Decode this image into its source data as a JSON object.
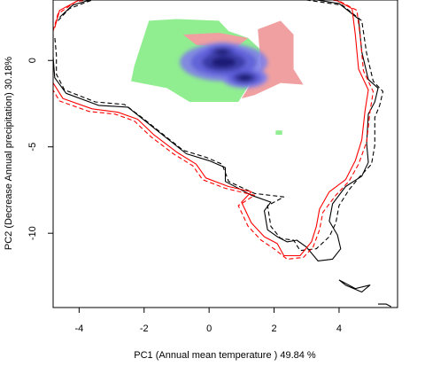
{
  "chart_data": {
    "type": "scatter",
    "title": "",
    "xlabel": "PC1 (Annual mean temperature ) 49.84 %",
    "ylabel": "PC2 (Decrease Annual precipitation) 30.18%",
    "xlim": [
      -4.8,
      5.8
    ],
    "ylim": [
      -14.3,
      3.5
    ],
    "x_ticks": [
      -4,
      -2,
      0,
      2,
      4
    ],
    "y_ticks": [
      0,
      -5,
      -10
    ],
    "grid": false,
    "legend": "none",
    "colors": {
      "overlap_density": "#1a1a6e",
      "niche_a_only": "#90ee90",
      "niche_b_only": "#f0a0a0",
      "envelope_a": "#000000",
      "envelope_b": "#ff0000"
    },
    "regions": [
      {
        "name": "",
        "color": "#90ee90",
        "polygon": [
          [
            -1.85,
            2.3
          ],
          [
            -1.0,
            2.4
          ],
          [
            0.3,
            2.3
          ],
          [
            0.6,
            1.7
          ],
          [
            1.2,
            1.3
          ],
          [
            1.6,
            0.6
          ],
          [
            1.2,
            -1.5
          ],
          [
            0.9,
            -2.4
          ],
          [
            -0.6,
            -2.4
          ],
          [
            -1.3,
            -1.6
          ],
          [
            -2.4,
            -1.2
          ],
          [
            -2.3,
            -0.3
          ]
        ]
      },
      {
        "name": "",
        "color": "#f0a0a0",
        "polygon": [
          [
            1.5,
            1.8
          ],
          [
            2.2,
            2.3
          ],
          [
            2.6,
            1.5
          ],
          [
            2.6,
            -0.5
          ],
          [
            2.9,
            -1.4
          ],
          [
            2.2,
            -1.3
          ],
          [
            1.4,
            -2.0
          ],
          [
            1.0,
            -2.2
          ],
          [
            1.6,
            -0.4
          ]
        ]
      },
      {
        "name": "",
        "color": "#f0a0a0",
        "polygon": [
          [
            -0.8,
            1.5
          ],
          [
            0.3,
            1.6
          ],
          [
            1.2,
            1.3
          ],
          [
            0.8,
            0.7
          ],
          [
            -0.4,
            0.9
          ]
        ]
      },
      {
        "name": "",
        "color": "#90ee90",
        "polygon": [
          [
            2.05,
            -4.05
          ],
          [
            2.25,
            -4.05
          ],
          [
            2.25,
            -4.3
          ],
          [
            2.05,
            -4.3
          ]
        ]
      }
    ],
    "density": [
      {
        "x": 0.45,
        "y": -0.1,
        "sx": 1.35,
        "sy": 1.1,
        "weight": 0.55
      },
      {
        "x": 1.1,
        "y": -1.0,
        "sx": 0.7,
        "sy": 0.6,
        "weight": 0.95
      },
      {
        "x": 0.4,
        "y": 0.5,
        "sx": 0.7,
        "sy": 0.55,
        "weight": 0.5
      },
      {
        "x": 0.2,
        "y": -0.3,
        "sx": 0.5,
        "sy": 0.4,
        "weight": 0.45
      }
    ],
    "series": [
      {
        "color": "#000000",
        "style": "solid",
        "points": [
          [
            -4.6,
            2.5
          ],
          [
            -4.2,
            3.2
          ],
          [
            -3.5,
            3.6
          ],
          [
            -1.5,
            3.6
          ],
          [
            1.5,
            3.6
          ],
          [
            3.0,
            3.6
          ],
          [
            4.0,
            3.3
          ],
          [
            4.6,
            2.4
          ],
          [
            4.7,
            0.5
          ],
          [
            4.9,
            -1.1
          ],
          [
            5.2,
            -1.6
          ],
          [
            5.1,
            -2.4
          ],
          [
            4.9,
            -3.1
          ],
          [
            4.85,
            -4.8
          ],
          [
            4.9,
            -5.9
          ],
          [
            4.7,
            -6.7
          ],
          [
            4.2,
            -7.3
          ],
          [
            3.8,
            -8.3
          ],
          [
            3.7,
            -9.3
          ],
          [
            3.95,
            -10.1
          ],
          [
            4.05,
            -10.9
          ],
          [
            3.8,
            -11.5
          ],
          [
            3.35,
            -11.6
          ],
          [
            3.0,
            -10.8
          ],
          [
            2.7,
            -10.4
          ],
          [
            2.4,
            -10.5
          ],
          [
            2.1,
            -10.2
          ],
          [
            1.8,
            -9.8
          ],
          [
            1.7,
            -8.7
          ],
          [
            1.9,
            -8.2
          ],
          [
            1.3,
            -7.8
          ],
          [
            0.5,
            -7.0
          ],
          [
            0.5,
            -6.2
          ],
          [
            0.0,
            -5.8
          ],
          [
            -0.7,
            -5.4
          ],
          [
            -1.3,
            -4.5
          ],
          [
            -1.9,
            -3.6
          ],
          [
            -2.5,
            -2.7
          ],
          [
            -3.4,
            -2.6
          ],
          [
            -4.4,
            -1.9
          ],
          [
            -4.75,
            -1.0
          ],
          [
            -4.8,
            0.2
          ],
          [
            -4.8,
            1.5
          ]
        ]
      },
      {
        "color": "#000000",
        "style": "dashed",
        "points": [
          [
            -4.65,
            2.3
          ],
          [
            -4.3,
            3.0
          ],
          [
            -3.6,
            3.5
          ],
          [
            -1.5,
            3.5
          ],
          [
            1.5,
            3.5
          ],
          [
            3.0,
            3.5
          ],
          [
            4.1,
            3.2
          ],
          [
            4.7,
            2.3
          ],
          [
            4.85,
            0.4
          ],
          [
            5.05,
            -1.2
          ],
          [
            5.35,
            -1.8
          ],
          [
            5.25,
            -2.6
          ],
          [
            5.1,
            -3.3
          ],
          [
            5.1,
            -4.9
          ],
          [
            5.0,
            -6.0
          ],
          [
            4.6,
            -6.8
          ],
          [
            4.3,
            -7.5
          ],
          [
            4.0,
            -8.4
          ],
          [
            3.9,
            -9.4
          ],
          [
            3.7,
            -10.2
          ],
          [
            3.3,
            -10.9
          ],
          [
            2.8,
            -11.0
          ],
          [
            2.6,
            -10.4
          ],
          [
            2.2,
            -10.3
          ],
          [
            1.9,
            -9.6
          ],
          [
            1.8,
            -8.4
          ],
          [
            2.3,
            -7.9
          ],
          [
            1.4,
            -7.7
          ],
          [
            0.6,
            -7.0
          ],
          [
            0.4,
            -6.0
          ],
          [
            -0.1,
            -5.6
          ],
          [
            -0.8,
            -5.2
          ],
          [
            -1.4,
            -4.3
          ],
          [
            -2.0,
            -3.4
          ],
          [
            -2.6,
            -2.55
          ],
          [
            -3.5,
            -2.4
          ],
          [
            -4.45,
            -1.7
          ],
          [
            -4.7,
            -0.8
          ],
          [
            -4.7,
            0.3
          ],
          [
            -4.75,
            1.4
          ]
        ]
      },
      {
        "color": "#ff0000",
        "style": "solid",
        "points": [
          [
            -4.75,
            1.9
          ],
          [
            -4.6,
            2.9
          ],
          [
            -4.0,
            3.5
          ],
          [
            -3.2,
            3.7
          ],
          [
            -1.5,
            3.7
          ],
          [
            1.5,
            3.7
          ],
          [
            3.0,
            3.7
          ],
          [
            3.9,
            3.5
          ],
          [
            4.4,
            3.0
          ],
          [
            4.5,
            1.5
          ],
          [
            4.6,
            -0.5
          ],
          [
            4.9,
            -1.7
          ],
          [
            4.8,
            -2.9
          ],
          [
            4.7,
            -4.6
          ],
          [
            4.5,
            -5.8
          ],
          [
            4.2,
            -6.9
          ],
          [
            3.7,
            -7.6
          ],
          [
            3.4,
            -8.6
          ],
          [
            3.3,
            -9.6
          ],
          [
            3.15,
            -10.5
          ],
          [
            2.8,
            -11.3
          ],
          [
            2.3,
            -11.3
          ],
          [
            2.1,
            -10.6
          ],
          [
            1.7,
            -10.2
          ],
          [
            1.3,
            -9.4
          ],
          [
            1.0,
            -8.2
          ],
          [
            1.3,
            -7.6
          ],
          [
            0.6,
            -7.3
          ],
          [
            -0.1,
            -6.8
          ],
          [
            -0.4,
            -6.0
          ],
          [
            -1.0,
            -5.3
          ],
          [
            -1.7,
            -4.3
          ],
          [
            -2.2,
            -3.4
          ],
          [
            -2.8,
            -3.0
          ],
          [
            -3.6,
            -2.8
          ],
          [
            -4.5,
            -2.2
          ],
          [
            -4.8,
            -1.3
          ],
          [
            -4.85,
            0.2
          ]
        ]
      },
      {
        "color": "#ff0000",
        "style": "dashed",
        "points": [
          [
            -4.8,
            1.7
          ],
          [
            -4.65,
            2.7
          ],
          [
            -4.1,
            3.4
          ],
          [
            -3.3,
            3.65
          ],
          [
            -1.5,
            3.65
          ],
          [
            1.5,
            3.65
          ],
          [
            3.0,
            3.65
          ],
          [
            4.0,
            3.45
          ],
          [
            4.55,
            2.9
          ],
          [
            4.65,
            1.4
          ],
          [
            4.75,
            -0.6
          ],
          [
            5.05,
            -1.8
          ],
          [
            4.95,
            -3.0
          ],
          [
            4.85,
            -4.7
          ],
          [
            4.6,
            -6.0
          ],
          [
            4.3,
            -7.0
          ],
          [
            3.9,
            -7.8
          ],
          [
            3.5,
            -8.8
          ],
          [
            3.4,
            -9.8
          ],
          [
            3.2,
            -10.8
          ],
          [
            2.9,
            -11.4
          ],
          [
            2.4,
            -11.5
          ],
          [
            2.0,
            -10.9
          ],
          [
            1.6,
            -10.4
          ],
          [
            1.2,
            -9.6
          ],
          [
            0.9,
            -8.4
          ],
          [
            1.4,
            -7.8
          ],
          [
            0.5,
            -7.4
          ],
          [
            -0.2,
            -6.9
          ],
          [
            -0.5,
            -6.1
          ],
          [
            -1.1,
            -5.4
          ],
          [
            -1.8,
            -4.4
          ],
          [
            -2.3,
            -3.5
          ],
          [
            -2.9,
            -3.1
          ],
          [
            -3.7,
            -2.95
          ],
          [
            -4.6,
            -2.35
          ],
          [
            -4.9,
            -1.4
          ],
          [
            -4.9,
            0.1
          ]
        ]
      },
      {
        "color": "#000000",
        "style": "solid",
        "points": [
          [
            4.0,
            -12.7
          ],
          [
            4.5,
            -13.2
          ],
          [
            4.95,
            -13.0
          ],
          [
            4.7,
            -13.4
          ],
          [
            4.2,
            -13.0
          ],
          [
            4.0,
            -12.7
          ]
        ]
      },
      {
        "color": "#000000",
        "style": "solid",
        "points": [
          [
            5.2,
            -14.1
          ],
          [
            5.45,
            -14.1
          ],
          [
            5.6,
            -14.25
          ]
        ]
      }
    ]
  }
}
